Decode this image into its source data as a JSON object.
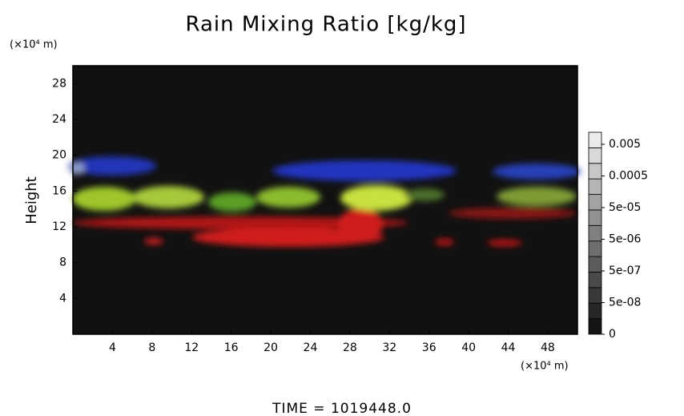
{
  "chart_data": {
    "type": "heatmap",
    "title": "Rain Mixing Ratio [kg/kg]",
    "y_label": "Height",
    "y_unit": "(×10⁴ m)",
    "x_unit": "(×10⁴ m)",
    "annotation": "TIME = 1019448.0",
    "xlim": [
      0,
      51
    ],
    "xticks": [
      4,
      8,
      12,
      16,
      20,
      24,
      28,
      32,
      36,
      40,
      44,
      48
    ],
    "ylim": [
      0,
      30
    ],
    "yticks": [
      4,
      8,
      12,
      16,
      20,
      24,
      28
    ],
    "colorbar": {
      "ticks": [
        0,
        {
          "value": 5e-08,
          "label": "5e-08"
        },
        {
          "value": 5e-07,
          "label": "5e-07"
        },
        {
          "value": 5e-06,
          "label": "5e-06"
        },
        {
          "value": 5e-05,
          "label": "5e-05"
        },
        0.0005,
        0.005
      ]
    }
  }
}
